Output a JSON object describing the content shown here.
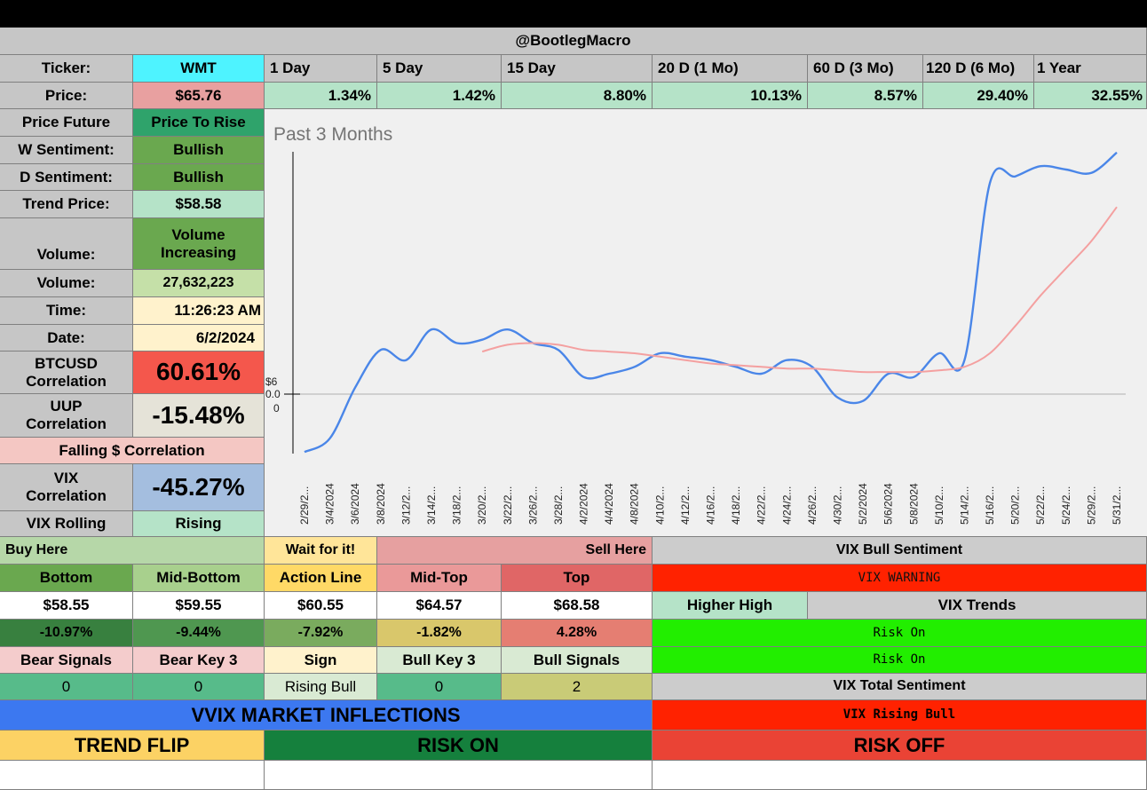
{
  "header": {
    "handle": "@BootlegMacro"
  },
  "ticker": {
    "label": "Ticker:",
    "value": "WMT",
    "color": "#4ef3ff"
  },
  "periods": [
    "1 Day",
    "5 Day",
    "15 Day",
    "20 D (1 Mo)",
    "60 D (3 Mo)",
    "120 D (6 Mo)",
    "1 Year"
  ],
  "price": {
    "label": "Price:",
    "value": "$65.76"
  },
  "returns": [
    "1.34%",
    "1.42%",
    "8.80%",
    "10.13%",
    "8.57%",
    "29.40%",
    "32.55%"
  ],
  "stats": {
    "price_future": {
      "label": "Price Future",
      "value": "Price To Rise"
    },
    "w_sentiment": {
      "label": "W Sentiment:",
      "value": "Bullish"
    },
    "d_sentiment": {
      "label": "D Sentiment:",
      "value": "Bullish"
    },
    "trend_price": {
      "label": "Trend Price:",
      "value": "$58.58"
    },
    "volume_trend": {
      "label": "Volume:",
      "value": "Volume Increasing"
    },
    "volume": {
      "label": "Volume:",
      "value": "27,632,223"
    },
    "time": {
      "label": "Time:",
      "value": "11:26:23 AM"
    },
    "date": {
      "label": "Date:",
      "value": "6/2/2024"
    },
    "btc_corr": {
      "label": "BTCUSD Correlation",
      "value": "60.61%"
    },
    "uup_corr": {
      "label": "UUP Correlation",
      "value": "-15.48%"
    },
    "falling_corr": {
      "label": "Falling $ Correlation"
    },
    "vix_corr": {
      "label": "VIX Correlation",
      "value": "-45.27%"
    },
    "vix_rolling": {
      "label": "VIX Rolling",
      "value": "Rising"
    }
  },
  "chart_data": {
    "type": "line",
    "title": "Past 3 Months",
    "y_tick_labels": [
      "$6",
      "0.0",
      "0"
    ],
    "categories": [
      "2/29/2...",
      "3/4/2024",
      "3/6/2024",
      "3/8/2024",
      "3/12/2...",
      "3/14/2...",
      "3/18/2...",
      "3/20/2...",
      "3/22/2...",
      "3/26/2...",
      "3/28/2...",
      "4/2/2024",
      "4/4/2024",
      "4/8/2024",
      "4/10/2...",
      "4/12/2...",
      "4/16/2...",
      "4/18/2...",
      "4/22/2...",
      "4/24/2...",
      "4/26/2...",
      "4/30/2...",
      "5/2/2024",
      "5/6/2024",
      "5/8/2024",
      "5/10/2...",
      "5/14/2...",
      "5/16/2...",
      "5/20/2...",
      "5/22/2...",
      "5/24/2...",
      "5/29/2...",
      "5/31/2..."
    ],
    "ylim": [
      57.5,
      66.5
    ],
    "series": [
      {
        "color": "#4a86e8",
        "values": [
          57.6,
          58.0,
          59.5,
          60.6,
          60.3,
          61.2,
          60.8,
          60.9,
          61.2,
          60.8,
          60.6,
          59.8,
          59.9,
          60.1,
          60.5,
          60.4,
          60.3,
          60.1,
          59.9,
          60.3,
          60.1,
          59.2,
          59.1,
          59.9,
          59.8,
          60.5,
          60.3,
          65.5,
          65.7,
          66.0,
          65.9,
          65.8,
          66.4
        ]
      },
      {
        "color": "#f4a0a0",
        "values": [
          null,
          null,
          null,
          null,
          null,
          null,
          null,
          60.55,
          60.75,
          60.8,
          60.75,
          60.6,
          60.55,
          60.5,
          60.4,
          60.3,
          60.2,
          60.15,
          60.1,
          60.05,
          60.05,
          60.0,
          59.95,
          59.95,
          59.95,
          60.0,
          60.1,
          60.5,
          61.3,
          62.2,
          63.0,
          63.8,
          64.8
        ]
      }
    ]
  },
  "levels": {
    "buy_here": "Buy Here",
    "wait": "Wait for it!",
    "sell_here": "Sell Here",
    "headers": [
      "Bottom",
      "Mid-Bottom",
      "Action Line",
      "Mid-Top",
      "Top"
    ],
    "prices": [
      "$58.55",
      "$59.55",
      "$60.55",
      "$64.57",
      "$68.58"
    ],
    "pcts": [
      "-10.97%",
      "-9.44%",
      "-7.92%",
      "-1.82%",
      "4.28%"
    ]
  },
  "signals": {
    "headers": [
      "Bear Signals",
      "Bear Key 3",
      "Sign",
      "Bull Key 3",
      "Bull Signals"
    ],
    "values": [
      "0",
      "0",
      "Rising Bull",
      "0",
      "2"
    ]
  },
  "vix": {
    "bull_sentiment": "VIX Bull Sentiment",
    "warning": "VIX WARNING",
    "higher_high": "Higher High",
    "trends": "VIX Trends",
    "risk_on_1": "Risk On",
    "risk_on_2": "Risk On",
    "total_sentiment": "VIX Total Sentiment",
    "rising_bull": "VIX Rising Bull"
  },
  "inflections": {
    "title": "VVIX MARKET INFLECTIONS",
    "trend_flip": "TREND FLIP",
    "risk_on": "RISK ON",
    "risk_off": "RISK OFF"
  }
}
